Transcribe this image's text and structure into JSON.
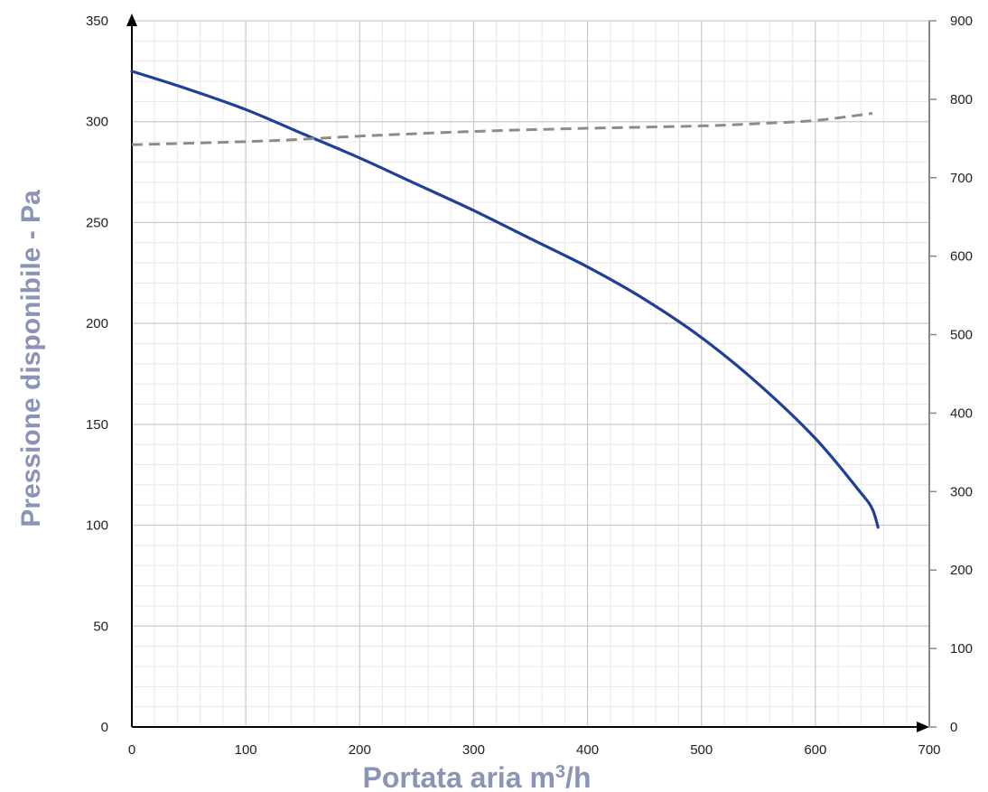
{
  "chart_data": {
    "type": "line",
    "xlabel_main": "Portata aria m",
    "xlabel_sup": "3",
    "xlabel_tail": "/h",
    "ylabel": "Pressione disponibile - Pa",
    "xlim": [
      0,
      700
    ],
    "ylim": [
      0,
      350
    ],
    "y2lim": [
      0,
      900
    ],
    "grid": true,
    "x_ticks": [
      "0",
      "100",
      "200",
      "300",
      "400",
      "500",
      "600",
      "700"
    ],
    "y_ticks": [
      "0",
      "50",
      "100",
      "150",
      "200",
      "250",
      "300",
      "350"
    ],
    "y2_ticks": [
      "0",
      "100",
      "200",
      "300",
      "400",
      "500",
      "600",
      "700",
      "800",
      "900"
    ],
    "series": [
      {
        "axis": "left",
        "style": "solid",
        "color": "#1f3f99",
        "x": [
          0,
          50,
          100,
          150,
          200,
          250,
          300,
          350,
          400,
          450,
          500,
          550,
          600,
          640,
          650,
          655
        ],
        "y": [
          325,
          316,
          306,
          294,
          282,
          269,
          256,
          242,
          228,
          212,
          193,
          170,
          143,
          116,
          108,
          99
        ]
      },
      {
        "axis": "right",
        "style": "dashed",
        "color": "#8c8c8c",
        "x": [
          0,
          100,
          150,
          200,
          300,
          400,
          500,
          550,
          600,
          650
        ],
        "y": [
          742,
          746,
          749,
          753,
          759,
          763,
          766,
          769,
          773,
          782
        ]
      }
    ]
  }
}
